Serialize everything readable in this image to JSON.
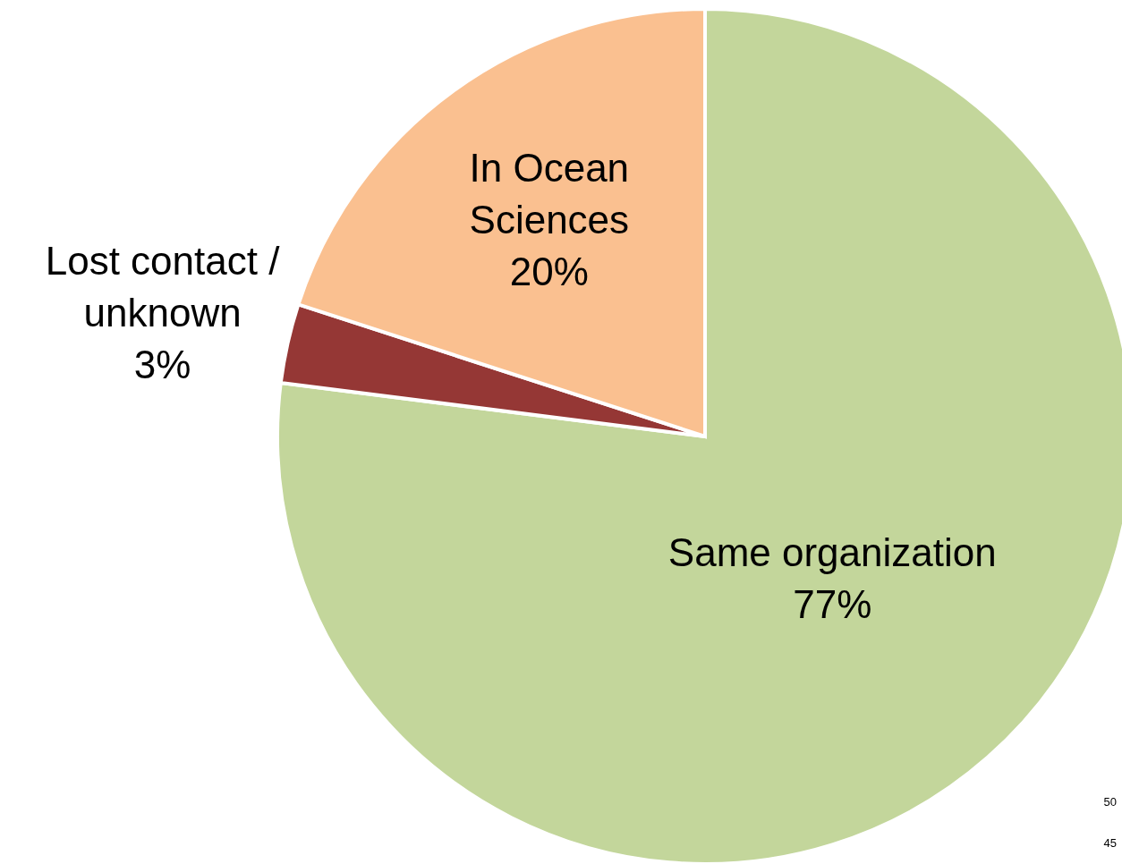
{
  "chart_data": {
    "type": "pie",
    "categories": [
      "Same organization",
      "Lost contact /\nunknown",
      "In Ocean\nSciences"
    ],
    "values": [
      77,
      3,
      20
    ],
    "value_labels": [
      "77%",
      "3%",
      "20%"
    ],
    "colors": [
      "#c3d69b",
      "#953735",
      "#fac090"
    ],
    "annotations": [
      "50",
      "45"
    ]
  }
}
